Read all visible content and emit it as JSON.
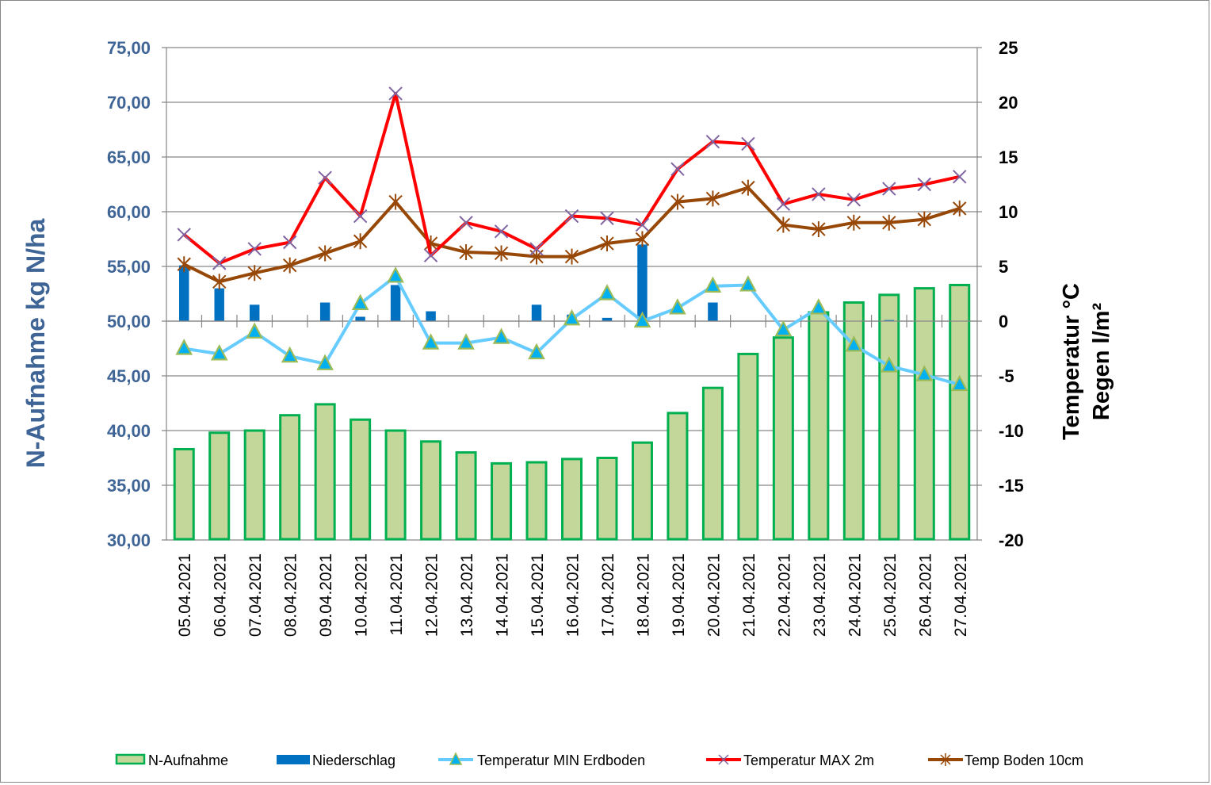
{
  "chart_data": {
    "type": "bar",
    "title": "",
    "categories": [
      "05.04.2021",
      "06.04.2021",
      "07.04.2021",
      "08.04.2021",
      "09.04.2021",
      "10.04.2021",
      "11.04.2021",
      "12.04.2021",
      "13.04.2021",
      "14.04.2021",
      "15.04.2021",
      "16.04.2021",
      "17.04.2021",
      "18.04.2021",
      "19.04.2021",
      "20.04.2021",
      "21.04.2021",
      "22.04.2021",
      "23.04.2021",
      "24.04.2021",
      "25.04.2021",
      "26.04.2021",
      "27.04.2021"
    ],
    "left_axis": {
      "label": "N-Aufnahme kg N/ha",
      "ylim": [
        30,
        75
      ],
      "ticks": [
        "30,00",
        "35,00",
        "40,00",
        "45,00",
        "50,00",
        "55,00",
        "60,00",
        "65,00",
        "70,00",
        "75,00"
      ],
      "tick_values": [
        30,
        35,
        40,
        45,
        50,
        55,
        60,
        65,
        70,
        75
      ]
    },
    "right_axis": {
      "label_line1": "Temperatur °C",
      "label_line2": "Regen l/m²",
      "ylim": [
        -20,
        25
      ],
      "ticks": [
        "-20",
        "-15",
        "-10",
        "-5",
        "0",
        "5",
        "10",
        "15",
        "20",
        "25"
      ],
      "tick_values": [
        -20,
        -15,
        -10,
        -5,
        0,
        5,
        10,
        15,
        20,
        25
      ]
    },
    "grid": true,
    "legend_position": "bottom",
    "series": [
      {
        "name": "N-Aufnahme",
        "kind": "bar",
        "axis": "left",
        "fill": "#c4d79b",
        "stroke": "#00b050",
        "values": [
          38.3,
          39.8,
          40.0,
          41.4,
          42.4,
          41.0,
          40.0,
          39.0,
          38.0,
          37.0,
          37.1,
          37.4,
          37.5,
          38.9,
          41.6,
          43.9,
          47.0,
          48.5,
          50.8,
          51.7,
          52.4,
          53.0,
          53.3
        ]
      },
      {
        "name": "Niederschlag",
        "kind": "bar",
        "axis": "right",
        "fill": "#0070c0",
        "values": [
          5.1,
          3.0,
          1.5,
          0,
          1.7,
          0.4,
          3.3,
          0.9,
          0,
          0,
          1.5,
          0.6,
          0.3,
          7.0,
          0,
          1.7,
          0,
          0,
          0,
          0,
          0.1,
          0,
          0
        ]
      },
      {
        "name": "Temperatur MIN Erdboden",
        "kind": "line",
        "axis": "right",
        "line": "#66ccff",
        "marker": "triangle",
        "marker_fill": "#00b0f0",
        "marker_stroke": "#9bbb59",
        "values": [
          -2.5,
          -3.0,
          -1.0,
          -3.2,
          -3.9,
          1.6,
          4.1,
          -2.0,
          -2.0,
          -1.5,
          -2.9,
          0.2,
          2.5,
          0.0,
          1.2,
          3.2,
          3.3,
          -0.8,
          1.2,
          -2.2,
          -4.1,
          -4.9,
          -5.8
        ]
      },
      {
        "name": "Temperatur MAX 2m",
        "kind": "line",
        "axis": "right",
        "line": "#ff0000",
        "marker": "x",
        "marker_stroke": "#8064a2",
        "values": [
          7.9,
          5.3,
          6.6,
          7.2,
          13.1,
          9.6,
          20.8,
          6.0,
          9.0,
          8.2,
          6.6,
          9.6,
          9.4,
          8.8,
          13.9,
          16.4,
          16.2,
          10.7,
          11.6,
          11.1,
          12.1,
          12.5,
          13.2
        ]
      },
      {
        "name": "Temp Boden 10cm",
        "kind": "line",
        "axis": "right",
        "line": "#974706",
        "marker": "star",
        "marker_stroke": "#974706",
        "values": [
          5.2,
          3.6,
          4.4,
          5.1,
          6.2,
          7.3,
          10.9,
          7.1,
          6.3,
          6.2,
          5.9,
          5.9,
          7.1,
          7.5,
          10.9,
          11.2,
          12.2,
          8.8,
          8.4,
          9.0,
          9.0,
          9.3,
          10.3
        ]
      }
    ]
  }
}
